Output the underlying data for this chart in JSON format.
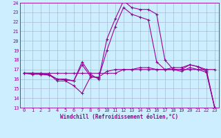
{
  "xlabel": "Windchill (Refroidissement éolien,°C)",
  "ylabel": "",
  "bg_color": "#cceeff",
  "line_color": "#990099",
  "grid_color": "#aaaacc",
  "xlim": [
    -0.5,
    23.5
  ],
  "ylim": [
    13,
    24
  ],
  "xticks": [
    0,
    1,
    2,
    3,
    4,
    5,
    6,
    7,
    8,
    9,
    10,
    11,
    12,
    13,
    14,
    15,
    16,
    17,
    18,
    19,
    20,
    21,
    22,
    23
  ],
  "yticks": [
    13,
    14,
    15,
    16,
    17,
    18,
    19,
    20,
    21,
    22,
    23,
    24
  ],
  "line1_x": [
    0,
    1,
    2,
    3,
    4,
    5,
    6,
    7,
    8,
    9,
    10,
    11,
    12,
    13,
    14,
    15,
    16,
    17,
    18,
    19,
    20,
    21,
    22,
    23
  ],
  "line1_y": [
    16.6,
    16.6,
    16.6,
    16.6,
    16.6,
    16.6,
    16.6,
    16.6,
    16.6,
    16.6,
    16.6,
    16.6,
    17.0,
    17.0,
    17.0,
    17.0,
    17.0,
    17.0,
    17.0,
    17.0,
    17.0,
    17.0,
    17.0,
    17.0
  ],
  "line2_x": [
    0,
    1,
    2,
    3,
    4,
    5,
    6,
    7,
    8,
    9,
    10,
    11,
    12,
    13,
    14,
    15,
    16,
    17,
    18,
    19,
    20,
    21,
    22,
    23
  ],
  "line2_y": [
    16.6,
    16.6,
    16.6,
    16.5,
    15.8,
    15.8,
    15.3,
    14.5,
    16.2,
    16.2,
    16.8,
    17.0,
    17.0,
    17.0,
    17.2,
    17.2,
    17.0,
    17.0,
    17.2,
    17.2,
    17.5,
    17.3,
    17.0,
    13.0
  ],
  "line3_x": [
    0,
    1,
    2,
    3,
    4,
    5,
    6,
    7,
    8,
    9,
    10,
    11,
    12,
    13,
    14,
    15,
    16,
    17,
    18,
    19,
    20,
    21,
    22,
    23
  ],
  "line3_y": [
    16.6,
    16.6,
    16.5,
    16.5,
    16.0,
    16.0,
    15.8,
    17.8,
    16.5,
    16.0,
    20.2,
    22.3,
    24.2,
    23.5,
    23.3,
    23.3,
    22.8,
    18.0,
    17.0,
    17.0,
    17.5,
    17.3,
    16.8,
    13.0
  ],
  "line4_x": [
    0,
    1,
    2,
    3,
    4,
    5,
    6,
    7,
    8,
    9,
    10,
    11,
    12,
    13,
    14,
    15,
    16,
    17,
    18,
    19,
    20,
    21,
    22,
    23
  ],
  "line4_y": [
    16.6,
    16.5,
    16.5,
    16.4,
    16.0,
    15.9,
    15.8,
    17.5,
    16.3,
    16.1,
    19.0,
    21.5,
    23.5,
    22.8,
    22.5,
    22.2,
    17.8,
    17.0,
    17.0,
    16.8,
    17.2,
    17.0,
    16.7,
    13.0
  ]
}
